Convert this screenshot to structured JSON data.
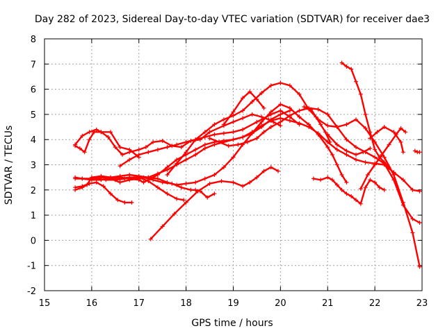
{
  "chart_data": {
    "type": "line",
    "title": "Day 282 of 2023, Sidereal Day-to-day VTEC variation (SDTVAR) for receiver dae3",
    "xlabel": "GPS time / hours",
    "ylabel": "SDTVAR / TECUs",
    "xlim": [
      15,
      23
    ],
    "ylim": [
      -2,
      8
    ],
    "xticks": [
      "15",
      "16",
      "17",
      "18",
      "19",
      "20",
      "21",
      "22",
      "23"
    ],
    "yticks": [
      "-2",
      "-1",
      "0",
      "1",
      "2",
      "3",
      "4",
      "5",
      "6",
      "7",
      "8"
    ],
    "grid": true,
    "marker": "plus",
    "color": "#ff0000",
    "series": [
      {
        "name": "s1",
        "x": [
          15.65,
          15.8,
          15.95,
          16.1,
          16.2,
          16.35,
          16.5,
          16.65,
          16.8,
          17.0,
          17.15,
          17.3,
          17.5,
          17.7,
          17.9,
          18.1,
          18.3,
          18.5,
          18.8,
          19.0,
          19.2,
          19.4,
          19.6,
          19.75,
          19.85,
          20.0
        ],
        "y": [
          3.8,
          4.15,
          4.3,
          4.4,
          4.3,
          4.1,
          3.7,
          3.4,
          3.5,
          3.6,
          3.7,
          3.9,
          3.95,
          3.75,
          3.7,
          3.95,
          4.0,
          4.3,
          4.55,
          4.7,
          4.85,
          5.0,
          4.9,
          4.8,
          4.7,
          4.55
        ]
      },
      {
        "name": "s2",
        "x": [
          15.65,
          15.75,
          15.85,
          15.95,
          16.05,
          16.2,
          16.4,
          16.6,
          16.8,
          17.0
        ],
        "y": [
          3.75,
          3.65,
          3.5,
          4.0,
          4.3,
          4.3,
          4.3,
          3.7,
          3.6,
          3.3
        ]
      },
      {
        "name": "s3",
        "x": [
          16.6,
          16.8,
          17.0,
          17.2,
          17.4,
          17.6,
          17.8,
          18.0,
          18.2,
          18.4,
          18.6,
          18.8,
          19.0,
          19.2,
          19.5,
          19.8,
          20.0,
          20.2,
          20.4
        ],
        "y": [
          2.95,
          3.2,
          3.4,
          3.5,
          3.6,
          3.7,
          3.8,
          3.9,
          4.0,
          4.1,
          4.2,
          4.25,
          4.3,
          4.4,
          4.7,
          5.0,
          5.15,
          4.9,
          4.6
        ]
      },
      {
        "name": "s4",
        "x": [
          15.65,
          15.8,
          16.0,
          16.2,
          16.4,
          16.6,
          16.8,
          17.0,
          17.2,
          17.4,
          17.6,
          17.8,
          18.0,
          18.2,
          18.4,
          18.6,
          18.8,
          19.0,
          19.2,
          19.4,
          19.6,
          19.8,
          20.0,
          20.2
        ],
        "y": [
          2.5,
          2.45,
          2.45,
          2.5,
          2.45,
          2.3,
          2.4,
          2.45,
          2.5,
          2.65,
          2.8,
          3.0,
          3.2,
          3.4,
          3.65,
          3.8,
          3.9,
          4.0,
          4.1,
          4.25,
          4.5,
          4.8,
          5.0,
          5.15
        ]
      },
      {
        "name": "s5",
        "x": [
          15.65,
          15.8,
          16.0,
          16.2,
          16.4,
          16.6,
          16.8,
          17.0,
          17.1,
          17.2,
          17.4,
          17.6,
          17.8,
          18.0,
          18.2,
          18.4,
          18.6,
          18.8,
          19.0,
          19.2,
          19.4,
          19.6,
          19.8,
          20.0,
          20.2,
          20.4,
          20.6,
          20.8,
          21.0,
          21.2,
          21.4,
          21.6,
          21.8,
          22.0,
          22.2,
          22.4,
          22.6,
          22.8,
          22.95
        ],
        "y": [
          2.45,
          2.45,
          2.4,
          2.4,
          2.45,
          2.5,
          2.45,
          2.4,
          2.3,
          2.4,
          2.6,
          2.9,
          3.2,
          3.4,
          3.6,
          3.8,
          3.9,
          3.95,
          4.0,
          4.1,
          4.3,
          4.55,
          4.75,
          4.85,
          4.75,
          4.65,
          4.5,
          4.25,
          3.9,
          3.6,
          3.4,
          3.2,
          3.1,
          3.05,
          3.0,
          2.7,
          2.4,
          2.0,
          1.95
        ]
      },
      {
        "name": "s6",
        "x": [
          15.65,
          15.8,
          15.95,
          16.1,
          16.25,
          16.4,
          16.55,
          16.7,
          16.85
        ],
        "y": [
          2.1,
          2.15,
          2.25,
          2.3,
          2.15,
          1.85,
          1.6,
          1.5,
          1.5
        ]
      },
      {
        "name": "s7",
        "x": [
          15.65,
          15.8,
          15.9,
          16.0,
          16.2,
          16.4,
          16.6,
          16.8,
          17.0,
          17.2,
          17.4,
          17.6,
          17.8,
          17.95
        ],
        "y": [
          2.0,
          2.1,
          2.2,
          2.5,
          2.55,
          2.5,
          2.45,
          2.5,
          2.5,
          2.35,
          2.1,
          1.85,
          1.65,
          1.6
        ]
      },
      {
        "name": "s8",
        "x": [
          16.1,
          16.3,
          16.5,
          16.7,
          16.9,
          17.1,
          17.3,
          17.5,
          17.7,
          17.9,
          18.1,
          18.2,
          18.3,
          18.45,
          18.6
        ],
        "y": [
          2.45,
          2.4,
          2.4,
          2.45,
          2.5,
          2.5,
          2.4,
          2.3,
          2.25,
          2.1,
          2.0,
          2.0,
          1.95,
          1.7,
          1.85
        ]
      },
      {
        "name": "s9",
        "x": [
          16.0,
          16.2,
          16.4,
          16.6,
          16.8,
          17.0,
          17.2,
          17.4,
          17.6,
          17.8,
          18.0,
          18.2,
          18.4,
          18.6,
          18.8,
          19.0,
          19.2,
          19.4,
          19.6,
          19.8,
          20.0,
          20.2,
          20.4,
          20.6,
          20.8,
          21.0,
          21.1,
          21.2,
          21.3,
          21.4
        ],
        "y": [
          2.45,
          2.5,
          2.5,
          2.55,
          2.6,
          2.55,
          2.5,
          2.45,
          2.3,
          2.2,
          2.25,
          2.3,
          2.45,
          2.6,
          2.9,
          3.3,
          3.8,
          4.25,
          4.7,
          5.1,
          5.4,
          5.25,
          4.9,
          4.6,
          4.2,
          3.7,
          3.4,
          3.0,
          2.6,
          2.3
        ]
      },
      {
        "name": "s10",
        "x": [
          17.25,
          17.5,
          17.75,
          18.0,
          18.25,
          18.5,
          18.75,
          19.0,
          19.2,
          19.35,
          19.5,
          19.65,
          19.8,
          19.95
        ],
        "y": [
          0.05,
          0.55,
          1.05,
          1.5,
          1.95,
          2.25,
          2.35,
          2.3,
          2.15,
          2.3,
          2.5,
          2.75,
          2.9,
          2.75
        ]
      },
      {
        "name": "s11",
        "x": [
          17.6,
          17.8,
          18.0,
          18.2,
          18.4,
          18.6,
          18.8,
          19.0,
          19.2,
          19.4,
          19.6,
          19.8,
          20.0,
          20.2,
          20.4,
          20.6,
          20.8,
          21.0,
          21.2,
          21.4,
          21.6,
          21.8,
          22.0,
          22.2,
          22.4,
          22.6,
          22.8,
          22.95
        ],
        "y": [
          2.6,
          3.05,
          3.5,
          4.0,
          4.3,
          4.6,
          4.8,
          4.95,
          5.15,
          5.5,
          5.85,
          6.15,
          6.25,
          6.15,
          5.8,
          5.2,
          4.8,
          4.55,
          4.5,
          4.6,
          4.8,
          4.45,
          3.9,
          3.3,
          2.6,
          1.5,
          0.3,
          -1.05
        ]
      },
      {
        "name": "s12",
        "x": [
          18.5,
          18.7,
          18.9,
          19.1,
          19.3,
          19.5,
          19.65,
          19.8,
          20.0,
          20.2,
          20.4,
          20.6,
          20.8,
          21.0,
          21.2,
          21.4,
          21.6,
          21.8,
          22.0,
          22.2,
          22.4,
          22.6,
          22.8,
          22.95
        ],
        "y": [
          4.05,
          3.9,
          3.75,
          3.8,
          3.9,
          4.05,
          4.3,
          4.5,
          4.7,
          4.95,
          5.15,
          5.25,
          5.2,
          5.0,
          4.5,
          4.0,
          3.7,
          3.5,
          3.3,
          3.05,
          2.4,
          1.4,
          0.85,
          0.7
        ]
      },
      {
        "name": "s13",
        "x": [
          18.8,
          19.0,
          19.2,
          19.35,
          19.5,
          19.65
        ],
        "y": [
          4.6,
          5.1,
          5.65,
          5.9,
          5.6,
          5.25
        ]
      },
      {
        "name": "s14",
        "x": [
          21.3,
          21.4,
          21.5,
          21.6,
          21.7,
          21.8,
          21.9,
          22.0,
          22.1,
          22.2,
          22.3
        ],
        "y": [
          7.05,
          6.9,
          6.8,
          6.3,
          5.8,
          5.0,
          4.3,
          3.6,
          3.3,
          3.1,
          2.9
        ]
      },
      {
        "name": "s15",
        "x": [
          20.7,
          20.85,
          21.0,
          21.1,
          21.2,
          21.3,
          21.4,
          21.5,
          21.6,
          21.7,
          21.8,
          21.9,
          22.0,
          22.1,
          22.2
        ],
        "y": [
          2.45,
          2.4,
          2.5,
          2.4,
          2.2,
          2.0,
          1.85,
          1.75,
          1.6,
          1.45,
          2.1,
          2.4,
          2.3,
          2.1,
          2.0
        ]
      },
      {
        "name": "s16",
        "x": [
          21.7,
          21.85,
          22.0,
          22.15,
          22.3,
          22.45,
          22.55,
          22.65
        ],
        "y": [
          2.05,
          2.6,
          3.0,
          3.4,
          3.8,
          4.2,
          4.45,
          4.3
        ]
      },
      {
        "name": "s17",
        "x": [
          21.9,
          22.05,
          22.2,
          22.4,
          22.55,
          22.6
        ],
        "y": [
          4.05,
          4.3,
          4.5,
          4.3,
          3.9,
          3.5
        ]
      },
      {
        "name": "s18",
        "x": [
          22.85,
          22.9,
          22.95
        ],
        "y": [
          3.55,
          3.5,
          3.5
        ]
      },
      {
        "name": "s19",
        "x": [
          20.5,
          20.65,
          20.75,
          20.85,
          20.95,
          21.05
        ],
        "y": [
          5.3,
          5.2,
          4.9,
          4.6,
          4.3,
          3.9
        ]
      },
      {
        "name": "s20",
        "x": [
          21.0,
          21.2,
          21.4,
          21.6,
          21.75,
          21.9
        ],
        "y": [
          4.2,
          3.8,
          3.55,
          3.4,
          3.5,
          3.65
        ]
      }
    ]
  }
}
